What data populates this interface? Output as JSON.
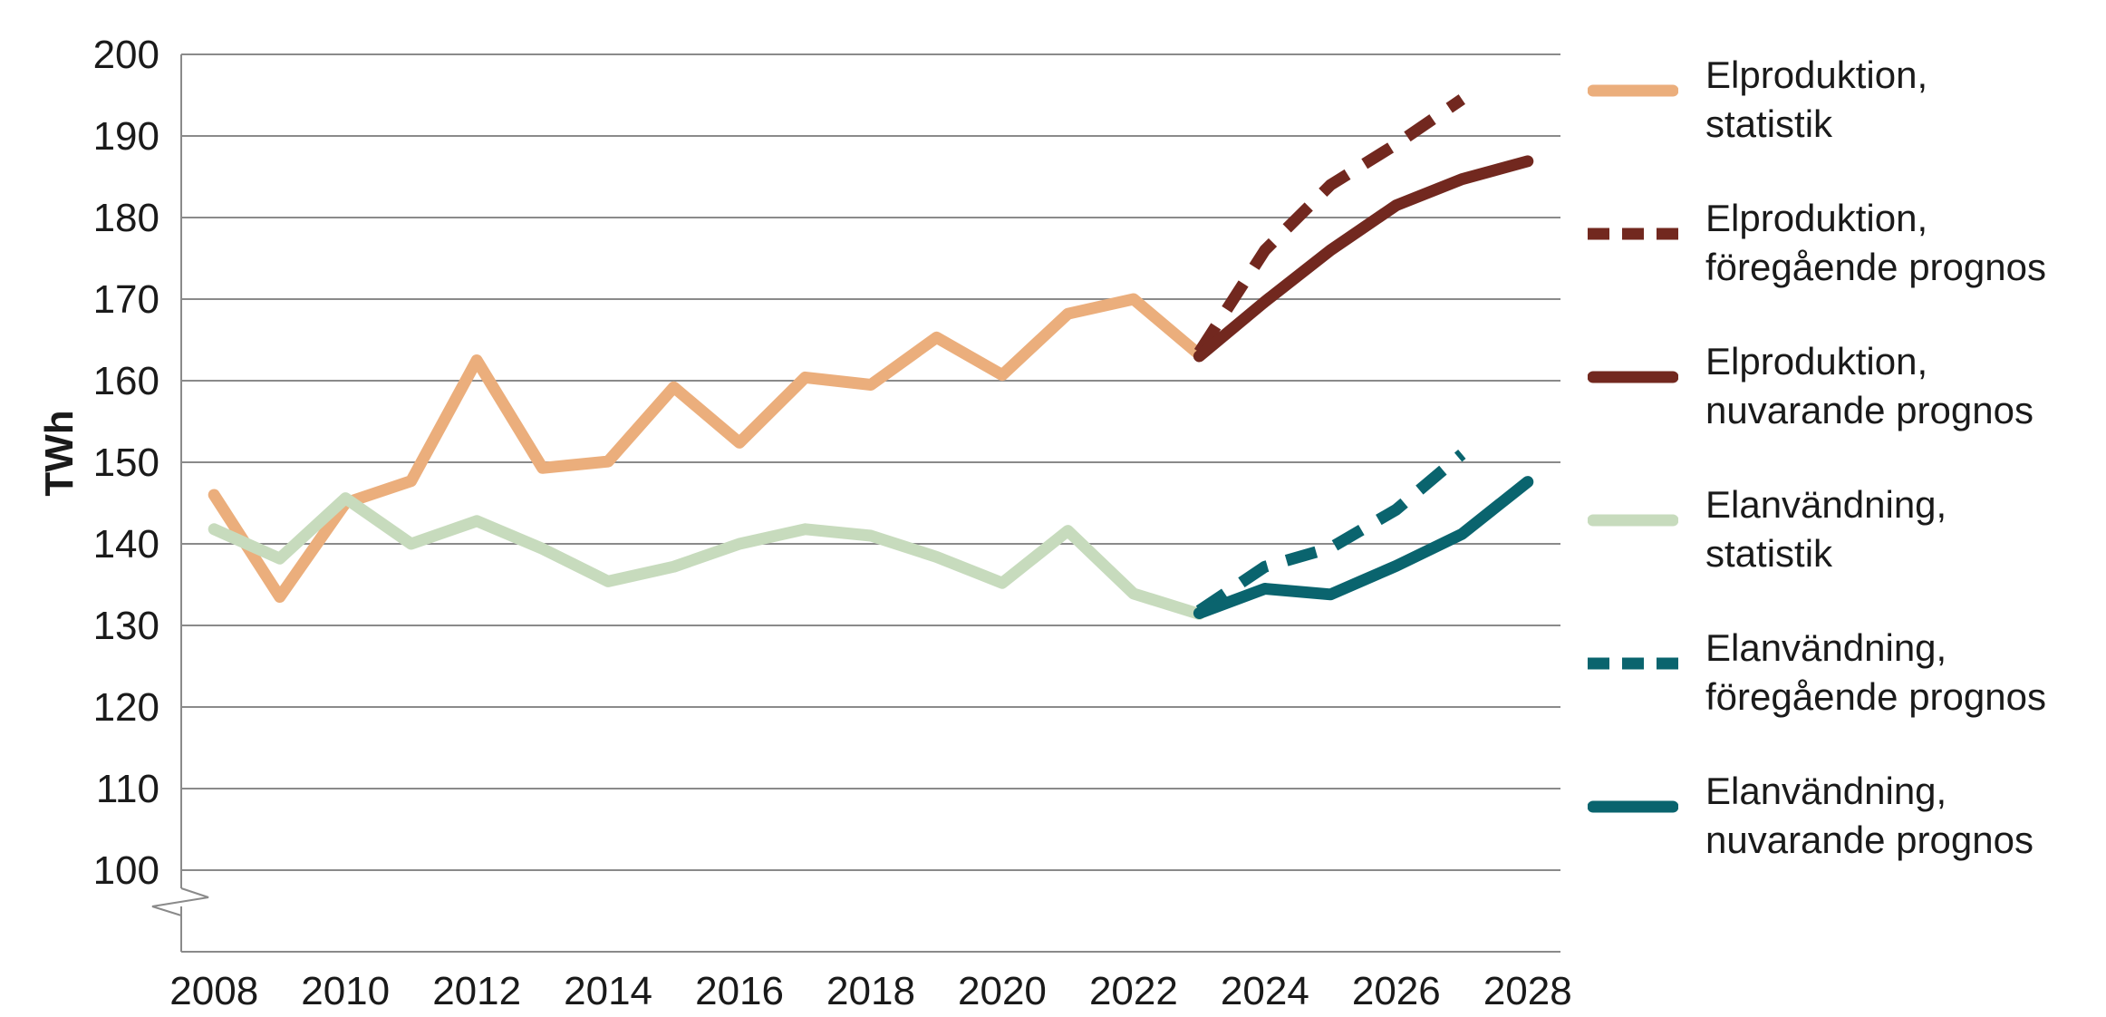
{
  "chart_data": {
    "type": "line",
    "title": "",
    "xlabel": "",
    "ylabel": "TWh",
    "ylim": [
      100,
      200
    ],
    "axis_break": true,
    "grid": "horizontal",
    "legend_position": "right",
    "x_ticks": [
      "2008",
      "2010",
      "2012",
      "2014",
      "2016",
      "2018",
      "2020",
      "2022",
      "2024",
      "2026",
      "2028"
    ],
    "y_ticks": [
      "100",
      "110",
      "120",
      "130",
      "140",
      "150",
      "160",
      "170",
      "180",
      "190",
      "200"
    ],
    "series": [
      {
        "name": "Elproduktion,\nstatistik",
        "color": "#ebae7c",
        "dashed": false,
        "x": [
          2008,
          2009,
          2010,
          2011,
          2012,
          2013,
          2014,
          2015,
          2016,
          2017,
          2018,
          2019,
          2020,
          2021,
          2022,
          2023
        ],
        "values": [
          146,
          133.5,
          145,
          147.7,
          162.5,
          149.3,
          150.1,
          159.2,
          152.4,
          160.4,
          159.5,
          165.3,
          160.7,
          168.2,
          170,
          163.2
        ]
      },
      {
        "name": "Elproduktion,\nföregående prognos",
        "color": "#72281f",
        "dashed": true,
        "x": [
          2023,
          2024,
          2025,
          2026,
          2027
        ],
        "values": [
          163.5,
          176,
          184,
          189,
          194.5
        ]
      },
      {
        "name": "Elproduktion,\nnuvarande prognos",
        "color": "#72281f",
        "dashed": false,
        "x": [
          2023,
          2024,
          2025,
          2026,
          2027,
          2028
        ],
        "values": [
          163,
          169.7,
          176,
          181.5,
          184.7,
          186.9
        ]
      },
      {
        "name": "Elanvändning,\nstatistik",
        "color": "#c7dbbd",
        "dashed": false,
        "x": [
          2008,
          2009,
          2010,
          2011,
          2012,
          2013,
          2014,
          2015,
          2016,
          2017,
          2018,
          2019,
          2020,
          2021,
          2022,
          2023
        ],
        "values": [
          141.8,
          138.2,
          145.6,
          140,
          142.8,
          139.4,
          135.4,
          137.2,
          140,
          141.8,
          141,
          138.4,
          135.2,
          141.6,
          133.9,
          131.4
        ]
      },
      {
        "name": "Elanvändning,\nföregående prognos",
        "color": "#0a646e",
        "dashed": true,
        "x": [
          2023,
          2024,
          2025,
          2026,
          2027
        ],
        "values": [
          131.8,
          137.2,
          139.5,
          144.2,
          151
        ]
      },
      {
        "name": "Elanvändning,\nnuvarande prognos",
        "color": "#0a646e",
        "dashed": false,
        "x": [
          2023,
          2024,
          2025,
          2026,
          2027,
          2028
        ],
        "values": [
          131.5,
          134.5,
          133.8,
          137.3,
          141.2,
          147.6
        ]
      }
    ]
  }
}
